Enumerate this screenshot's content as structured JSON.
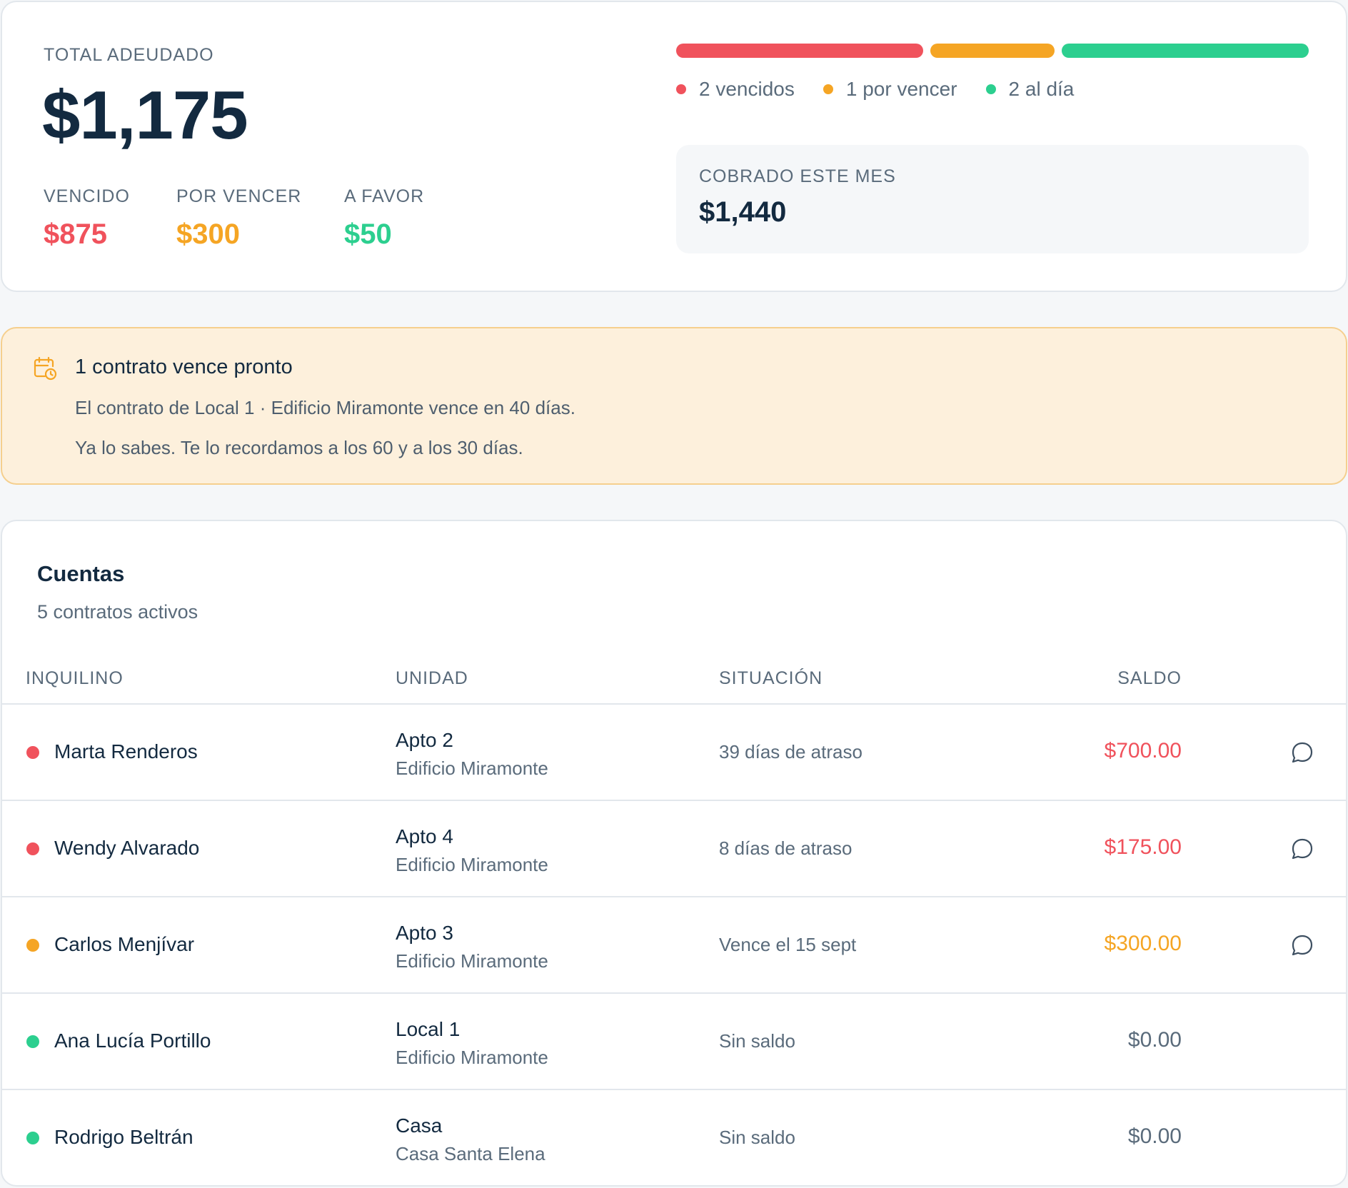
{
  "summary": {
    "total_label": "TOTAL ADEUDADO",
    "total_value": "$1,175",
    "metrics": [
      {
        "label": "VENCIDO",
        "value": "$875",
        "color": "#f0525c"
      },
      {
        "label": "POR VENCER",
        "value": "$300",
        "color": "#f5a524"
      },
      {
        "label": "A FAVOR",
        "value": "$50",
        "color": "#2ccf8f"
      }
    ],
    "status_bar": [
      {
        "count": 2,
        "color": "#f0525c"
      },
      {
        "count": 1,
        "color": "#f5a524"
      },
      {
        "count": 2,
        "color": "#2ccf8f"
      }
    ],
    "legend": [
      {
        "label": "2 vencidos",
        "color": "#f0525c"
      },
      {
        "label": "1 por vencer",
        "color": "#f5a524"
      },
      {
        "label": "2 al día",
        "color": "#2ccf8f"
      }
    ],
    "collected_label": "COBRADO ESTE MES",
    "collected_value": "$1,440"
  },
  "alert": {
    "icon": "calendar-clock-icon",
    "title": "1 contrato vence pronto",
    "line1": "El contrato de Local 1 · Edificio Miramonte vence en 40 días.",
    "line2": "Ya lo sabes. Te lo recordamos a los 60 y a los 30 días."
  },
  "accounts": {
    "title": "Cuentas",
    "subtitle": "5 contratos activos",
    "columns": {
      "tenant": "INQUILINO",
      "unit": "UNIDAD",
      "situation": "SITUACIÓN",
      "balance": "SALDO"
    },
    "rows": [
      {
        "tenant": "Marta Renderos",
        "unit": "Apto 2",
        "building": "Edificio Miramonte",
        "situation": "39 días de atraso",
        "balance": "$700.00",
        "status_color": "#f0525c",
        "balance_color": "#f0525c",
        "message_icon": true
      },
      {
        "tenant": "Wendy Alvarado",
        "unit": "Apto 4",
        "building": "Edificio Miramonte",
        "situation": "8 días de atraso",
        "balance": "$175.00",
        "status_color": "#f0525c",
        "balance_color": "#f0525c",
        "message_icon": true
      },
      {
        "tenant": "Carlos Menjívar",
        "unit": "Apto 3",
        "building": "Edificio Miramonte",
        "situation": "Vence el 15 sept",
        "balance": "$300.00",
        "status_color": "#f5a524",
        "balance_color": "#f5a524",
        "message_icon": true
      },
      {
        "tenant": "Ana Lucía Portillo",
        "unit": "Local 1",
        "building": "Edificio Miramonte",
        "situation": "Sin saldo",
        "balance": "$0.00",
        "status_color": "#2ccf8f",
        "balance_color": "#5a6b7b",
        "message_icon": false
      },
      {
        "tenant": "Rodrigo Beltrán",
        "unit": "Casa",
        "building": "Casa Santa Elena",
        "situation": "Sin saldo",
        "balance": "$0.00",
        "status_color": "#2ccf8f",
        "balance_color": "#5a6b7b",
        "message_icon": false
      }
    ]
  }
}
